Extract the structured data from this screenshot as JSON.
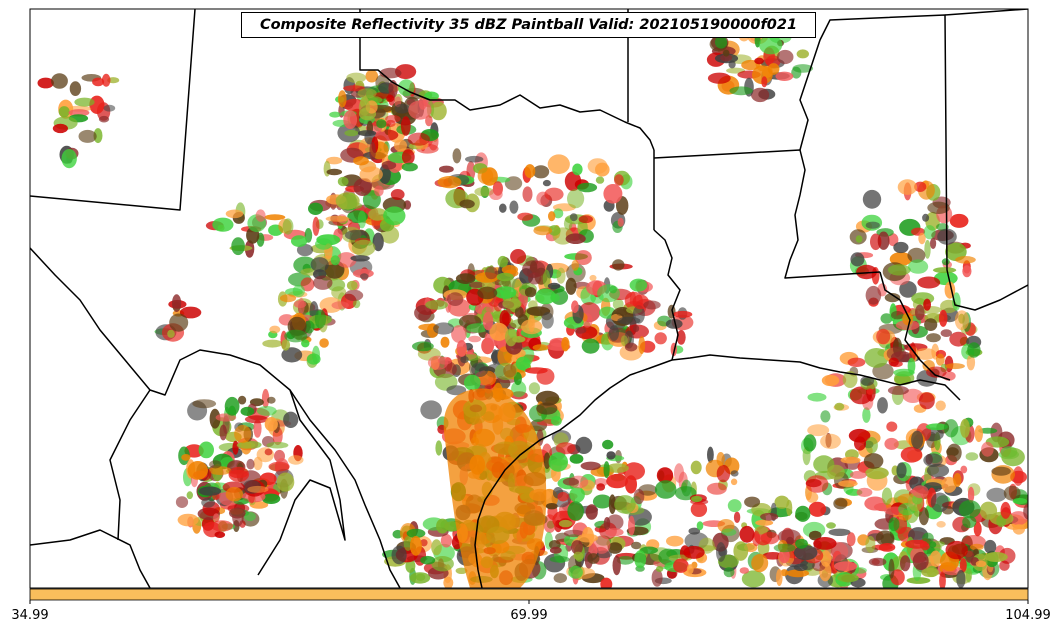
{
  "title": "Composite Reflectivity 35 dBZ Paintball Valid: 202105190000f021",
  "colorbar": {
    "color": "#f9be5c",
    "ticks": [
      "34.99",
      "69.99",
      "104.99"
    ]
  },
  "member_colors": [
    "#e8211a",
    "#f08200",
    "#cc0000",
    "#3cd23c",
    "#1b9c1b",
    "#8c2a2a",
    "#5a3c14",
    "#404040",
    "#a0b432",
    "#ffa03c",
    "#f25a5a",
    "#78b428"
  ],
  "map": {
    "region": "South-Central United States (Texas, Oklahoma, Louisiana, Arkansas, Mississippi, Gulf Coast)",
    "borders": "state boundaries and coastline in black"
  }
}
